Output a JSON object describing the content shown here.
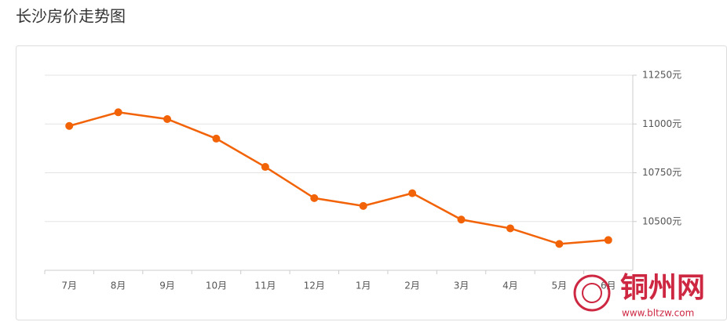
{
  "chart_data": {
    "type": "line",
    "title": "长沙房价走势图",
    "categories": [
      "7月",
      "8月",
      "9月",
      "10月",
      "11月",
      "12月",
      "1月",
      "2月",
      "3月",
      "4月",
      "5月",
      "6月"
    ],
    "series": [
      {
        "name": "长沙房价",
        "color": "#f26207",
        "values": [
          10990,
          11060,
          11025,
          10925,
          10780,
          10620,
          10580,
          10645,
          10510,
          10465,
          10385,
          10405
        ]
      }
    ],
    "ylim": [
      10250,
      11250
    ],
    "yticks": [
      {
        "value": 10500,
        "label": "10500元"
      },
      {
        "value": 10750,
        "label": "10750元"
      },
      {
        "value": 11000,
        "label": "11000元"
      },
      {
        "value": 11250,
        "label": "11250元"
      }
    ],
    "grid": true
  },
  "watermark": {
    "text": "铜州网",
    "url": "www.bltzw.com"
  }
}
